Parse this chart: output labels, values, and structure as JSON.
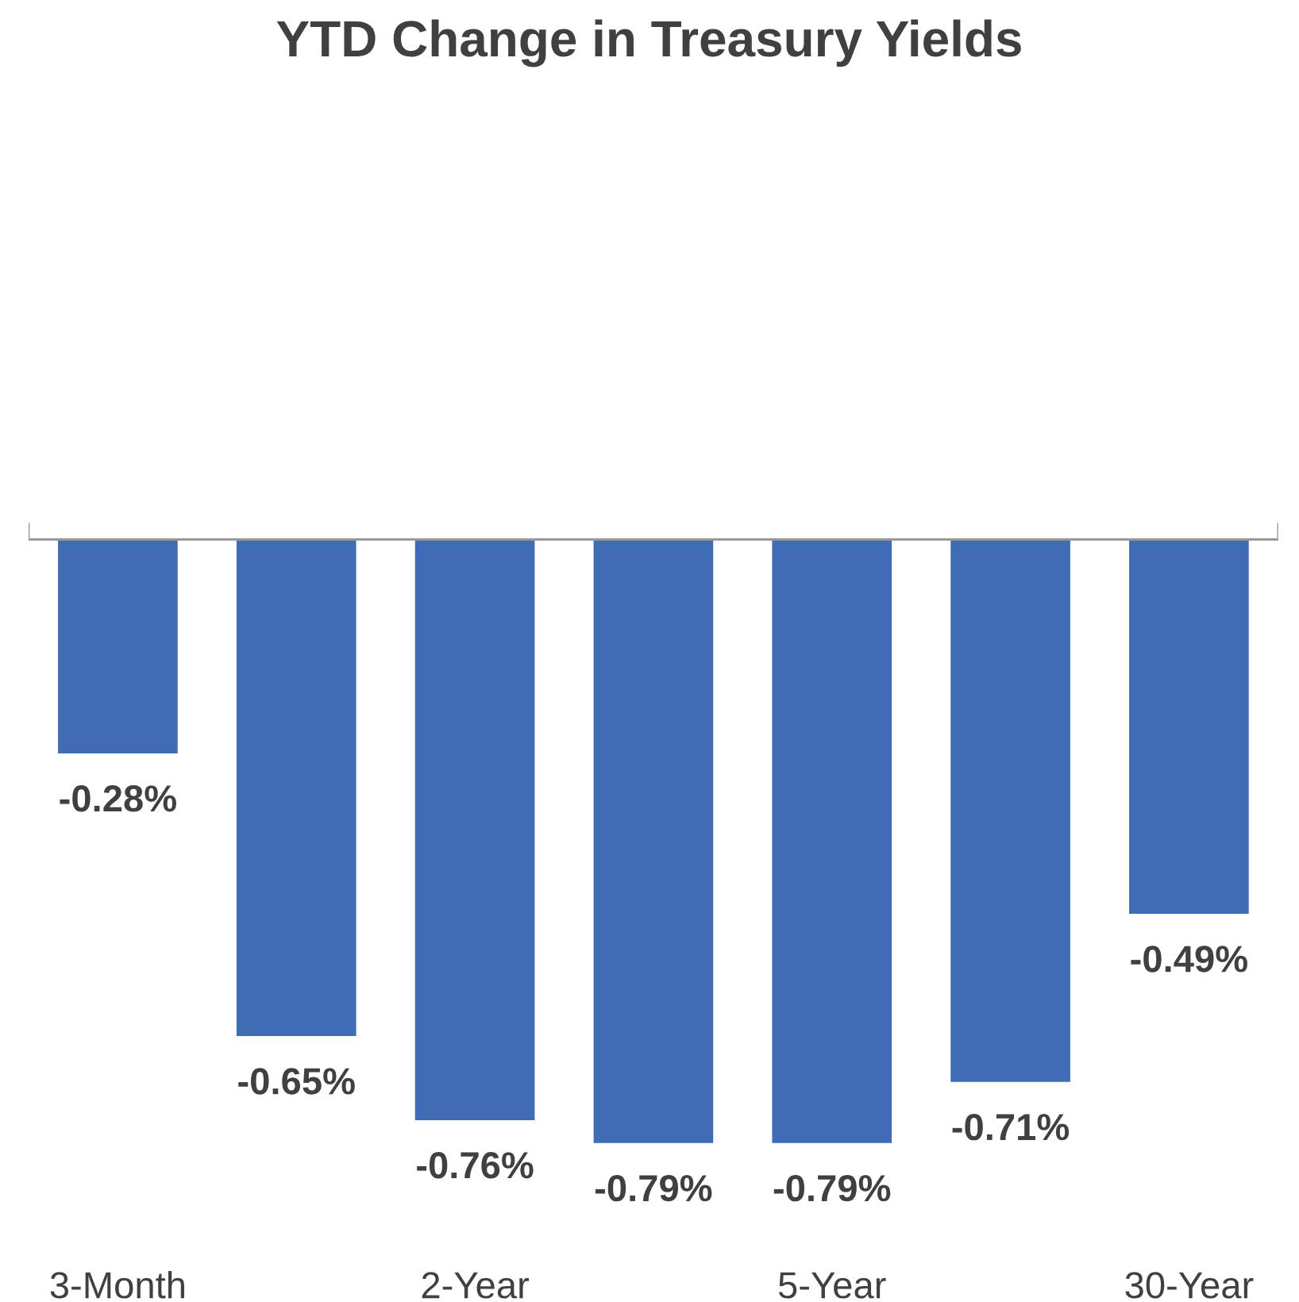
{
  "chart_data": {
    "type": "bar",
    "title": "YTD Change in Treasury Yields",
    "categories": [
      "3-Month",
      null,
      "2-Year",
      null,
      "5-Year",
      null,
      "30-Year"
    ],
    "values": [
      -0.28,
      -0.65,
      -0.76,
      -0.79,
      -0.79,
      -0.71,
      -0.49
    ],
    "value_labels": [
      "-0.28%",
      "-0.65%",
      "-0.76%",
      "-0.79%",
      "-0.79%",
      "-0.71%",
      "-0.49%"
    ],
    "color": "#3f6cb5",
    "tick_labels": "x",
    "grid": false,
    "legend": false
  }
}
